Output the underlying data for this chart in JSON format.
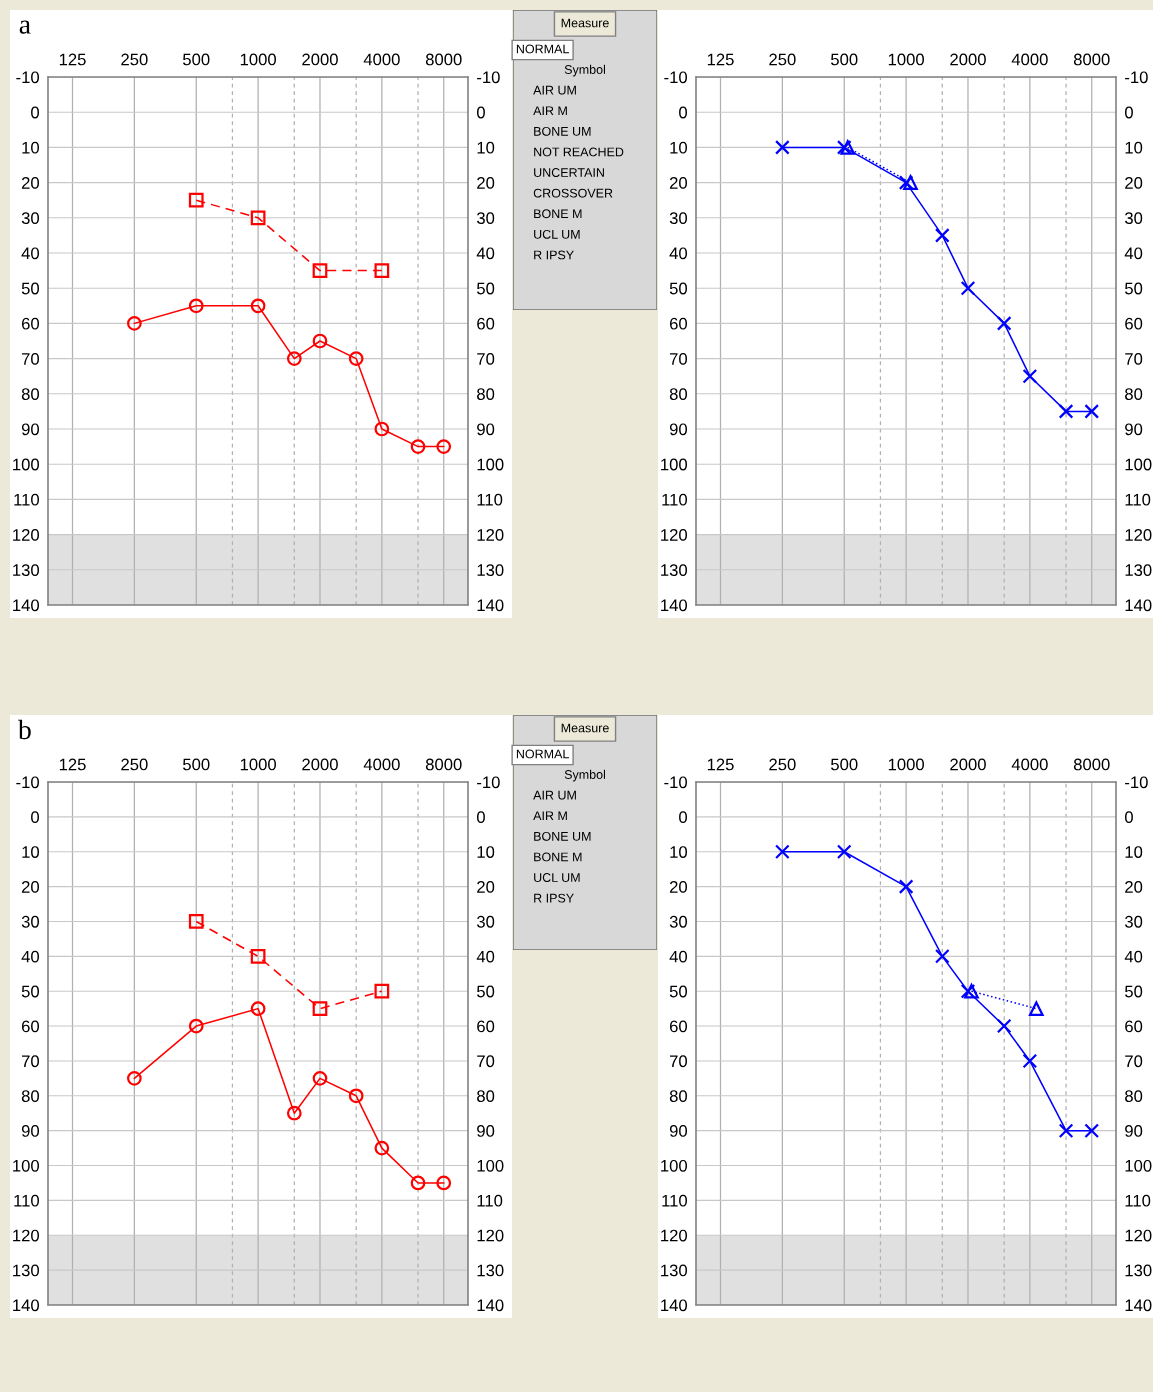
{
  "chart_data": [
    {
      "type": "line",
      "title": "a",
      "log": "x",
      "x": [
        250,
        500,
        1000,
        1500,
        2000,
        3000,
        4000,
        6000,
        8000
      ],
      "xlim": [
        95,
        10500
      ],
      "xticks": [
        125,
        250,
        500,
        {
          "value": 750,
          "label": null
        },
        1000,
        {
          "value": 1500,
          "label": null
        },
        2000,
        {
          "value": 3000,
          "label": null
        },
        4000,
        {
          "value": 6000,
          "label": null
        },
        8000
      ],
      "ylim": [
        140,
        -10
      ],
      "yticks": [
        -10,
        0,
        10,
        20,
        30,
        40,
        50,
        60,
        70,
        80,
        90,
        100,
        110,
        120,
        130,
        140
      ],
      "y2lim": [
        140,
        -10
      ],
      "y2ticks": [
        -10,
        0,
        10,
        20,
        30,
        40,
        50,
        60,
        70,
        80,
        90,
        100,
        110,
        120,
        130,
        140
      ],
      "grid": true,
      "bands": [
        {
          "axis": "y",
          "from": 120,
          "to": 140,
          "color": "#e0e0e0"
        }
      ],
      "series": [
        {
          "color": "#ff0000",
          "marker": "circle",
          "line_style": "solid",
          "values": [
            60,
            55,
            55,
            70,
            65,
            70,
            90,
            95,
            95
          ]
        },
        {
          "color": "#ff0000",
          "marker": "square",
          "line_style": "dashed",
          "x": [
            500,
            1000,
            2000,
            4000
          ],
          "values": [
            25,
            30,
            45,
            45
          ]
        }
      ]
    },
    {
      "type": "other",
      "title": "Measure",
      "annotations": [
        "NORMAL",
        "Symbol",
        "AIR UM",
        "AIR M",
        "BONE UM",
        "NOT REACHED",
        "UNCERTAIN",
        "CROSSOVER",
        "BONE M",
        "UCL UM",
        "R IPSY"
      ]
    },
    {
      "type": "line",
      "log": "x",
      "x": [
        250,
        500,
        1000,
        1500,
        2000,
        3000,
        4000,
        6000,
        8000
      ],
      "xlim": [
        95,
        10500
      ],
      "xticks": [
        125,
        250,
        500,
        {
          "value": 750,
          "label": null
        },
        1000,
        {
          "value": 1500,
          "label": null
        },
        2000,
        {
          "value": 3000,
          "label": null
        },
        4000,
        {
          "value": 6000,
          "label": null
        },
        8000
      ],
      "ylim": [
        140,
        -10
      ],
      "yticks": [
        -10,
        0,
        10,
        20,
        30,
        40,
        50,
        60,
        70,
        80,
        90,
        100,
        110,
        120,
        130,
        140
      ],
      "y2lim": [
        140,
        -10
      ],
      "y2ticks": [
        -10,
        0,
        10,
        20,
        30,
        40,
        50,
        60,
        70,
        80,
        90,
        100,
        110,
        120,
        130,
        140
      ],
      "grid": true,
      "bands": [
        {
          "axis": "y",
          "from": 120,
          "to": 140,
          "color": "#e0e0e0"
        }
      ],
      "series": [
        {
          "color": "#0000ff",
          "marker": "cross",
          "line_style": "solid",
          "values": [
            10,
            10,
            20,
            35,
            50,
            60,
            75,
            85,
            85
          ]
        },
        {
          "color": "#0000ff",
          "marker": "triangle",
          "line_style": "dotted",
          "x": [
            520,
            1050
          ],
          "values": [
            10,
            20
          ]
        }
      ]
    },
    {
      "type": "line",
      "title": "b",
      "log": "x",
      "x": [
        250,
        500,
        1000,
        1500,
        2000,
        3000,
        4000,
        6000,
        8000
      ],
      "xlim": [
        95,
        10500
      ],
      "xticks": [
        125,
        250,
        500,
        {
          "value": 750,
          "label": null
        },
        1000,
        {
          "value": 1500,
          "label": null
        },
        2000,
        {
          "value": 3000,
          "label": null
        },
        4000,
        {
          "value": 6000,
          "label": null
        },
        8000
      ],
      "ylim": [
        140,
        -10
      ],
      "yticks": [
        -10,
        0,
        10,
        20,
        30,
        40,
        50,
        60,
        70,
        80,
        90,
        100,
        110,
        120,
        130,
        140
      ],
      "y2lim": [
        140,
        -10
      ],
      "y2ticks": [
        -10,
        0,
        10,
        20,
        30,
        40,
        50,
        60,
        70,
        80,
        90,
        100,
        110,
        120,
        130,
        140
      ],
      "grid": true,
      "bands": [
        {
          "axis": "y",
          "from": 120,
          "to": 140,
          "color": "#e0e0e0"
        }
      ],
      "series": [
        {
          "color": "#ff0000",
          "marker": "circle",
          "line_style": "solid",
          "values": [
            75,
            60,
            55,
            85,
            75,
            80,
            95,
            105,
            105
          ]
        },
        {
          "color": "#ff0000",
          "marker": "square",
          "line_style": "dashed",
          "x": [
            500,
            1000,
            2000,
            4000
          ],
          "values": [
            30,
            40,
            55,
            50
          ]
        }
      ]
    },
    {
      "type": "other",
      "title": "Measure",
      "annotations": [
        "NORMAL",
        "Symbol",
        "AIR UM",
        "AIR M",
        "BONE UM",
        "BONE M",
        "UCL UM",
        "R IPSY"
      ]
    },
    {
      "type": "line",
      "log": "x",
      "x": [
        250,
        500,
        1000,
        1500,
        2000,
        3000,
        4000,
        6000,
        8000
      ],
      "xlim": [
        95,
        10500
      ],
      "xticks": [
        125,
        250,
        500,
        {
          "value": 750,
          "label": null
        },
        1000,
        {
          "value": 1500,
          "label": null
        },
        2000,
        {
          "value": 3000,
          "label": null
        },
        4000,
        {
          "value": 6000,
          "label": null
        },
        8000
      ],
      "ylim": [
        140,
        -10
      ],
      "yticks": [
        -10,
        0,
        10,
        20,
        30,
        40,
        50,
        60,
        70,
        80,
        90,
        100,
        110,
        120,
        130,
        140
      ],
      "y2lim": [
        140,
        -10
      ],
      "y2ticks": [
        -10,
        0,
        10,
        20,
        30,
        40,
        50,
        60,
        70,
        80,
        90,
        100,
        110,
        120,
        130,
        140
      ],
      "grid": true,
      "bands": [
        {
          "axis": "y",
          "from": 120,
          "to": 140,
          "color": "#e0e0e0"
        }
      ],
      "series": [
        {
          "color": "#0000ff",
          "marker": "cross",
          "line_style": "solid",
          "values": [
            10,
            10,
            20,
            40,
            50,
            60,
            70,
            90,
            90
          ]
        },
        {
          "color": "#0000ff",
          "marker": "triangle",
          "line_style": "dotted",
          "x": [
            2080,
            4300
          ],
          "values": [
            50,
            55
          ]
        }
      ]
    }
  ]
}
